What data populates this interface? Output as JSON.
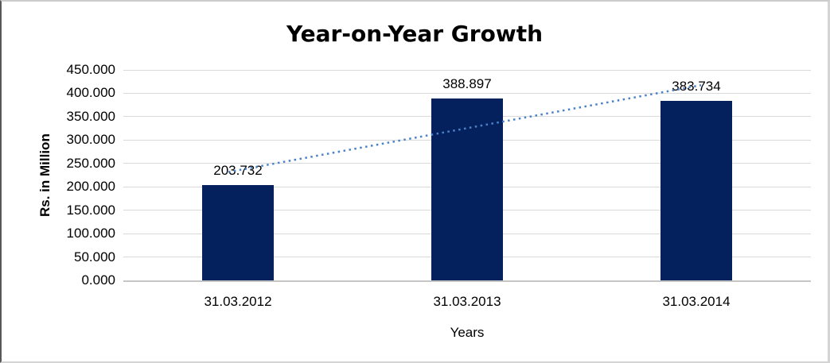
{
  "chart_data": {
    "type": "bar",
    "title": "Year-on-Year Growth",
    "categories": [
      "31.03.2012",
      "31.03.2013",
      "31.03.2014"
    ],
    "values": [
      203.732,
      388.897,
      383.734
    ],
    "value_labels": [
      "203.732",
      "388.897",
      "383.734"
    ],
    "xlabel": "Years",
    "ylabel": "Rs. in Million",
    "ylim": [
      0,
      450
    ],
    "ytick_step": 50,
    "ytick_labels": [
      "450.000",
      "400.000",
      "350.000",
      "300.000",
      "250.000",
      "200.000",
      "150.000",
      "100.000",
      "50.000",
      "0.000"
    ],
    "grid": true,
    "legend": "none",
    "bar_color": "#04215E",
    "trendline": {
      "type": "linear",
      "style": "dotted",
      "color": "#4A82C8",
      "endpoint_values": [
        235.453,
        415.455
      ]
    }
  }
}
